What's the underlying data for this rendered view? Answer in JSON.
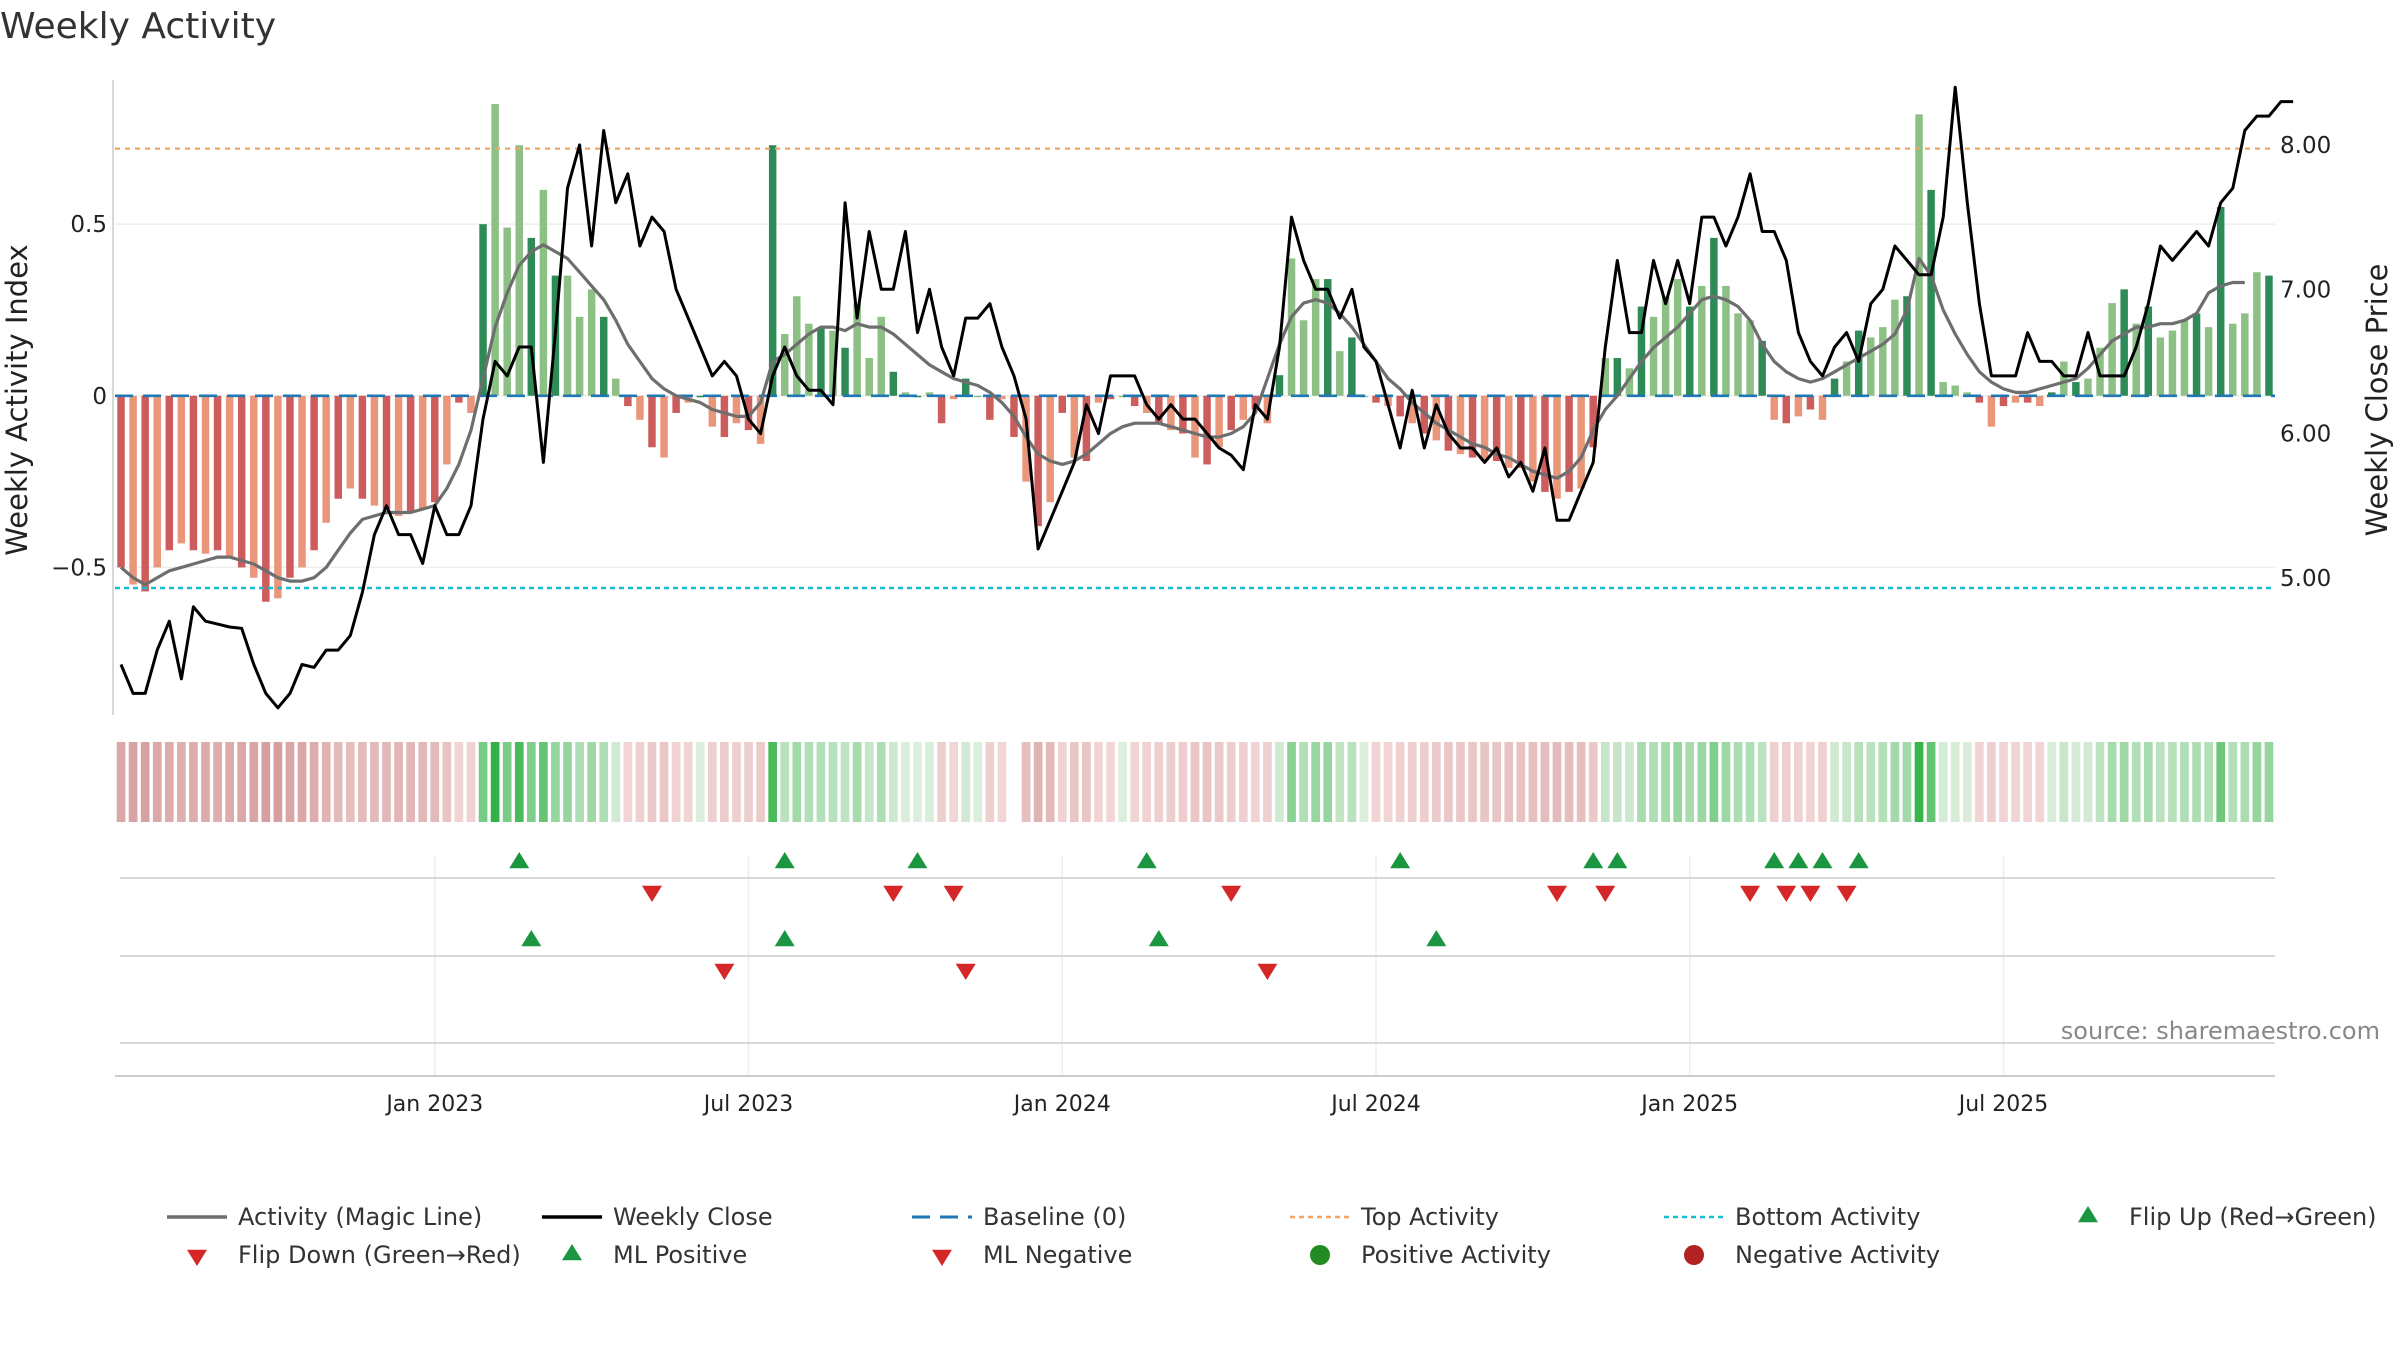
{
  "chart_data": {
    "type": "bar+line",
    "title": "Weekly Activity",
    "ylabel": "Weekly Activity Index",
    "y2label": "Weekly Close Price",
    "source": "source: sharemaestro.com",
    "ylim": [
      -0.93,
      0.92
    ],
    "y2lim": [
      4.05,
      8.45
    ],
    "y_ticks": [
      {
        "v": 0.5,
        "label": "0.5"
      },
      {
        "v": 0,
        "label": "0"
      },
      {
        "v": -0.5,
        "label": "−0.5"
      }
    ],
    "y2_ticks": [
      {
        "v": 8.0,
        "label": "8.00"
      },
      {
        "v": 7.0,
        "label": "7.00"
      },
      {
        "v": 6.0,
        "label": "6.00"
      },
      {
        "v": 5.0,
        "label": "5.00"
      }
    ],
    "x_ticks": [
      {
        "week": 26,
        "label": "Jan 2023"
      },
      {
        "week": 52,
        "label": "Jul 2023"
      },
      {
        "week": 78,
        "label": "Jan 2024"
      },
      {
        "week": 104,
        "label": "Jul 2024"
      },
      {
        "week": 130,
        "label": "Jan 2025"
      },
      {
        "week": 156,
        "label": "Jul 2025"
      }
    ],
    "top_activity": 0.72,
    "bottom_activity": -0.56,
    "baseline": 0,
    "activity": [
      -0.5,
      -0.55,
      -0.57,
      -0.5,
      -0.45,
      -0.43,
      -0.45,
      -0.46,
      -0.45,
      -0.47,
      -0.5,
      -0.53,
      -0.6,
      -0.59,
      -0.53,
      -0.5,
      -0.45,
      -0.37,
      -0.3,
      -0.27,
      -0.3,
      -0.32,
      -0.33,
      -0.35,
      -0.34,
      -0.33,
      -0.31,
      -0.2,
      -0.02,
      -0.05,
      0.5,
      0.85,
      0.49,
      0.73,
      0.46,
      0.6,
      0.35,
      0.35,
      0.23,
      0.31,
      0.23,
      0.05,
      -0.03,
      -0.07,
      -0.15,
      -0.18,
      -0.05,
      -0.02,
      0.0,
      -0.09,
      -0.12,
      -0.08,
      -0.1,
      -0.14,
      0.73,
      0.18,
      0.29,
      0.21,
      0.2,
      0.19,
      0.14,
      0.27,
      0.11,
      0.23,
      0.07,
      0.01,
      0.0,
      0.01,
      -0.08,
      -0.01,
      0.05,
      0.0,
      -0.07,
      -0.01,
      -0.12,
      -0.25,
      -0.38,
      -0.31,
      -0.05,
      -0.18,
      -0.19,
      -0.02,
      -0.01,
      0.0,
      -0.03,
      -0.05,
      -0.08,
      -0.1,
      -0.11,
      -0.18,
      -0.2,
      -0.15,
      -0.1,
      -0.07,
      -0.04,
      -0.08,
      0.06,
      0.4,
      0.22,
      0.34,
      0.34,
      0.13,
      0.17,
      0.0,
      -0.02,
      -0.03,
      -0.06,
      -0.08,
      -0.11,
      -0.13,
      -0.16,
      -0.17,
      -0.18,
      -0.19,
      -0.19,
      -0.21,
      -0.21,
      -0.25,
      -0.28,
      -0.3,
      -0.28,
      -0.27,
      -0.15,
      0.11,
      0.11,
      0.08,
      0.26,
      0.23,
      0.29,
      0.34,
      0.26,
      0.32,
      0.46,
      0.32,
      0.24,
      0.22,
      0.16,
      -0.07,
      -0.08,
      -0.06,
      -0.04,
      -0.07,
      0.05,
      0.1,
      0.19,
      0.17,
      0.2,
      0.28,
      0.29,
      0.82,
      0.6,
      0.04,
      0.03,
      0.01,
      -0.02,
      -0.09,
      -0.03,
      -0.02,
      -0.02,
      -0.03,
      0.01,
      0.1,
      0.04,
      0.05,
      0.14,
      0.27,
      0.31,
      0.21,
      0.26,
      0.17,
      0.19,
      0.22,
      0.24,
      0.2,
      0.55,
      0.21,
      0.24,
      0.36,
      0.35
    ],
    "weekly_close": [
      4.4,
      4.2,
      4.2,
      4.5,
      4.7,
      4.3,
      4.8,
      4.7,
      4.68,
      4.66,
      4.65,
      4.4,
      4.2,
      4.1,
      4.2,
      4.4,
      4.38,
      4.5,
      4.5,
      4.6,
      4.9,
      5.3,
      5.5,
      5.3,
      5.3,
      5.1,
      5.5,
      5.3,
      5.3,
      5.5,
      6.1,
      6.5,
      6.4,
      6.6,
      6.6,
      5.8,
      6.7,
      7.7,
      8.0,
      7.3,
      8.1,
      7.6,
      7.8,
      7.3,
      7.5,
      7.4,
      7.0,
      6.8,
      6.6,
      6.4,
      6.5,
      6.4,
      6.1,
      6.0,
      6.4,
      6.6,
      6.4,
      6.3,
      6.3,
      6.2,
      7.6,
      6.8,
      7.4,
      7.0,
      7.0,
      7.4,
      6.7,
      7.0,
      6.6,
      6.4,
      6.8,
      6.8,
      6.9,
      6.6,
      6.4,
      6.1,
      5.2,
      5.4,
      5.6,
      5.8,
      6.2,
      6.0,
      6.4,
      6.4,
      6.4,
      6.2,
      6.1,
      6.2,
      6.1,
      6.1,
      6.0,
      5.9,
      5.85,
      5.75,
      6.2,
      6.1,
      6.6,
      7.5,
      7.2,
      7.0,
      7.0,
      6.8,
      7.0,
      6.6,
      6.5,
      6.2,
      5.9,
      6.3,
      5.9,
      6.2,
      6.0,
      5.9,
      5.9,
      5.8,
      5.9,
      5.7,
      5.8,
      5.6,
      5.9,
      5.4,
      5.4,
      5.6,
      5.8,
      6.6,
      7.2,
      6.7,
      6.7,
      7.2,
      6.9,
      7.2,
      6.9,
      7.5,
      7.5,
      7.3,
      7.5,
      7.8,
      7.4,
      7.4,
      7.2,
      6.7,
      6.5,
      6.4,
      6.6,
      6.7,
      6.5,
      6.9,
      7.0,
      7.3,
      7.2,
      7.1,
      7.1,
      7.5,
      8.4,
      7.6,
      6.9,
      6.4,
      6.4,
      6.4,
      6.7,
      6.5,
      6.5,
      6.4,
      6.4,
      6.7,
      6.4,
      6.4,
      6.4,
      6.6,
      6.9,
      7.3,
      7.2,
      7.3,
      7.4,
      7.3,
      7.6,
      7.7,
      8.1,
      8.2,
      8.2,
      8.3,
      8.3
    ],
    "magic_line": [
      -0.5,
      -0.53,
      -0.55,
      -0.53,
      -0.51,
      -0.5,
      -0.49,
      -0.48,
      -0.47,
      -0.47,
      -0.48,
      -0.49,
      -0.51,
      -0.53,
      -0.54,
      -0.54,
      -0.53,
      -0.5,
      -0.45,
      -0.4,
      -0.36,
      -0.35,
      -0.34,
      -0.34,
      -0.34,
      -0.33,
      -0.32,
      -0.27,
      -0.2,
      -0.1,
      0.05,
      0.2,
      0.3,
      0.38,
      0.42,
      0.44,
      0.42,
      0.4,
      0.36,
      0.32,
      0.28,
      0.22,
      0.15,
      0.1,
      0.05,
      0.02,
      0.0,
      -0.01,
      -0.02,
      -0.04,
      -0.05,
      -0.06,
      -0.06,
      -0.02,
      0.1,
      0.12,
      0.15,
      0.18,
      0.2,
      0.2,
      0.19,
      0.21,
      0.2,
      0.2,
      0.18,
      0.15,
      0.12,
      0.09,
      0.07,
      0.05,
      0.04,
      0.03,
      0.01,
      -0.02,
      -0.06,
      -0.12,
      -0.17,
      -0.19,
      -0.2,
      -0.19,
      -0.17,
      -0.14,
      -0.11,
      -0.09,
      -0.08,
      -0.08,
      -0.08,
      -0.09,
      -0.1,
      -0.11,
      -0.12,
      -0.12,
      -0.11,
      -0.09,
      -0.05,
      0.05,
      0.15,
      0.23,
      0.27,
      0.28,
      0.27,
      0.24,
      0.2,
      0.15,
      0.1,
      0.05,
      0.02,
      -0.02,
      -0.05,
      -0.08,
      -0.1,
      -0.12,
      -0.14,
      -0.15,
      -0.17,
      -0.18,
      -0.2,
      -0.22,
      -0.23,
      -0.24,
      -0.22,
      -0.18,
      -0.1,
      -0.04,
      0.0,
      0.05,
      0.1,
      0.14,
      0.17,
      0.2,
      0.24,
      0.28,
      0.29,
      0.28,
      0.26,
      0.22,
      0.15,
      0.1,
      0.07,
      0.05,
      0.04,
      0.05,
      0.07,
      0.09,
      0.11,
      0.13,
      0.15,
      0.18,
      0.25,
      0.4,
      0.35,
      0.25,
      0.18,
      0.12,
      0.07,
      0.04,
      0.02,
      0.01,
      0.01,
      0.02,
      0.03,
      0.04,
      0.05,
      0.08,
      0.12,
      0.16,
      0.18,
      0.2,
      0.2,
      0.21,
      0.21,
      0.22,
      0.24,
      0.3,
      0.32,
      0.33,
      0.33
    ],
    "strip_gaps": [
      74
    ],
    "flip_up_weeks": [
      33,
      55,
      66,
      85,
      106,
      122,
      124,
      137,
      139,
      141,
      144
    ],
    "flip_down_weeks": [
      44,
      64,
      69,
      92,
      119,
      123,
      135,
      138,
      140,
      143
    ],
    "ml_positive_weeks": [
      34,
      55,
      86,
      109
    ],
    "ml_negative_weeks": [
      50,
      70,
      95
    ],
    "legend": [
      {
        "label": "Activity (Magic Line)",
        "symbol": "line-gray"
      },
      {
        "label": "Weekly Close",
        "symbol": "line-black"
      },
      {
        "label": "Baseline (0)",
        "symbol": "dash-blue"
      },
      {
        "label": "Top Activity",
        "symbol": "dot-orange"
      },
      {
        "label": "Bottom Activity",
        "symbol": "dot-cyan"
      },
      {
        "label": "Flip Up (Red→Green)",
        "symbol": "tri-up-green"
      },
      {
        "label": "Flip Down (Green→Red)",
        "symbol": "tri-down-red"
      },
      {
        "label": "ML Positive",
        "symbol": "tri-up-green"
      },
      {
        "label": "ML Negative",
        "symbol": "tri-down-red"
      },
      {
        "label": "Positive Activity",
        "symbol": "circle-green"
      },
      {
        "label": "Negative Activity",
        "symbol": "circle-red"
      }
    ],
    "colors": {
      "pos_dark": "#2e8b57",
      "pos_light": "#8cc084",
      "neg_dark": "#cd5c5c",
      "neg_light": "#e9967a",
      "magic_line": "#6e6e6e",
      "close": "#000000",
      "baseline": "#1f77b4",
      "top": "#f4a460",
      "bottom": "#17becf",
      "up_marker": "#1a9641",
      "down_marker": "#d62728",
      "circle_green": "#228b22",
      "circle_red": "#b22222"
    }
  }
}
